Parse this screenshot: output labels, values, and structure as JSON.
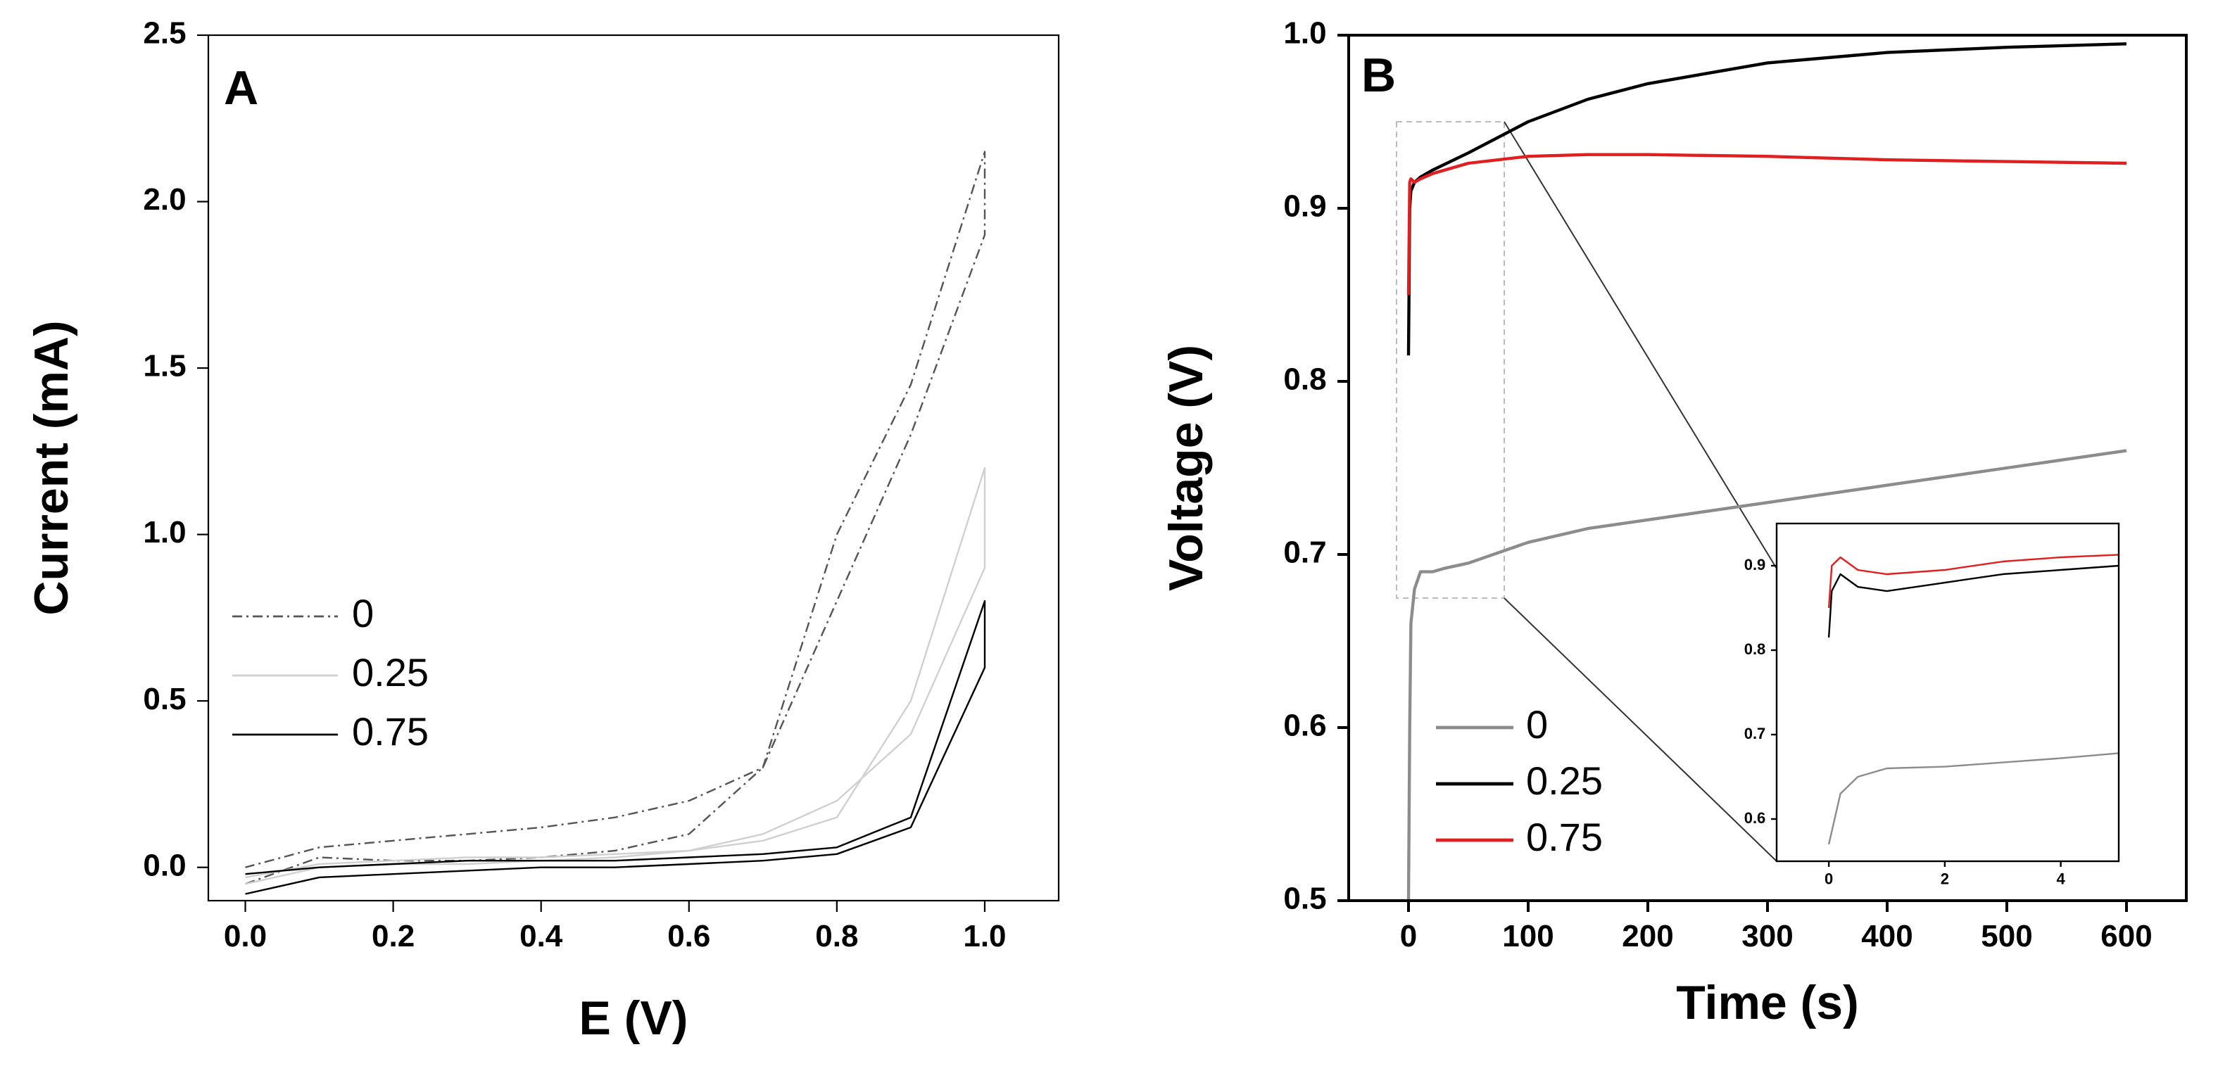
{
  "chart_data": [
    {
      "type": "line",
      "panel_label": "A",
      "xlabel": "E (V)",
      "ylabel": "Current (mA)",
      "xlim": [
        -0.05,
        1.1
      ],
      "ylim": [
        -0.1,
        2.5
      ],
      "xticks": [
        {
          "value": 0,
          "label": "0.0"
        },
        0.2,
        0.4,
        0.6,
        0.8,
        {
          "value": 1,
          "label": "1.0"
        }
      ],
      "yticks": [
        {
          "value": 0,
          "label": "0.0"
        },
        0.5,
        {
          "value": 1,
          "label": "1.0"
        },
        1.5,
        {
          "value": 2,
          "label": "2.0"
        },
        2.5
      ],
      "series": [
        {
          "name": "0",
          "color": "#555555",
          "linestyle": "dashdot",
          "x": [
            0,
            0.1,
            0.2,
            0.3,
            0.4,
            0.5,
            0.6,
            0.7,
            0.8,
            0.9,
            1.0,
            1.0,
            0.9,
            0.8,
            0.7,
            0.6,
            0.5,
            0.4,
            0.3,
            0.2,
            0.1,
            0
          ],
          "values": [
            -0.05,
            0.03,
            0.02,
            0.02,
            0.03,
            0.05,
            0.1,
            0.3,
            0.8,
            1.3,
            1.9,
            2.15,
            1.45,
            1.0,
            0.3,
            0.2,
            0.15,
            0.12,
            0.1,
            0.08,
            0.06,
            0
          ]
        },
        {
          "name": "0.25",
          "color": "#d0d0d0",
          "linestyle": "solid",
          "x": [
            0,
            0.1,
            0.2,
            0.3,
            0.4,
            0.5,
            0.6,
            0.7,
            0.8,
            0.9,
            1.0,
            1.0,
            0.9,
            0.8,
            0.7,
            0.6,
            0.5,
            0.4,
            0.3,
            0.2,
            0.1,
            0
          ],
          "values": [
            -0.05,
            0,
            0.01,
            0.01,
            0.02,
            0.03,
            0.05,
            0.1,
            0.2,
            0.4,
            0.9,
            1.2,
            0.5,
            0.15,
            0.08,
            0.05,
            0.04,
            0.03,
            0.03,
            0.02,
            0.01,
            -0.03
          ]
        },
        {
          "name": "0.75",
          "color": "#000000",
          "linestyle": "solid",
          "x": [
            0,
            0.1,
            0.2,
            0.3,
            0.4,
            0.5,
            0.6,
            0.7,
            0.8,
            0.9,
            1.0,
            1.0,
            0.9,
            0.8,
            0.7,
            0.6,
            0.5,
            0.4,
            0.3,
            0.2,
            0.1,
            0
          ],
          "values": [
            -0.08,
            -0.03,
            -0.02,
            -0.01,
            0,
            0,
            0.01,
            0.02,
            0.04,
            0.12,
            0.6,
            0.8,
            0.15,
            0.06,
            0.04,
            0.03,
            0.02,
            0.02,
            0.02,
            0.01,
            0,
            -0.02
          ]
        }
      ]
    },
    {
      "type": "line",
      "panel_label": "B",
      "xlabel": "Time (s)",
      "ylabel": "Voltage (V)",
      "xlim": [
        -50,
        650
      ],
      "ylim": [
        0.5,
        1.0
      ],
      "xticks": [
        0,
        100,
        200,
        300,
        400,
        500,
        600
      ],
      "yticks": [
        0.5,
        0.6,
        0.7,
        0.8,
        0.9,
        {
          "value": 1,
          "label": "1.0"
        }
      ],
      "series": [
        {
          "name": "0",
          "color": "#8c8c8c",
          "linestyle": "solid",
          "x": [
            0,
            1,
            2,
            5,
            10,
            20,
            30,
            50,
            100,
            150,
            200,
            300,
            400,
            500,
            600
          ],
          "values": [
            0.5,
            0.6,
            0.66,
            0.68,
            0.69,
            0.69,
            0.692,
            0.695,
            0.707,
            0.715,
            0.72,
            0.73,
            0.74,
            0.75,
            0.76
          ]
        },
        {
          "name": "0.25",
          "color": "#000000",
          "linestyle": "solid",
          "x": [
            0,
            1,
            2,
            5,
            10,
            20,
            50,
            100,
            150,
            200,
            300,
            400,
            500,
            600
          ],
          "values": [
            0.815,
            0.9,
            0.91,
            0.915,
            0.918,
            0.922,
            0.932,
            0.95,
            0.963,
            0.972,
            0.984,
            0.99,
            0.993,
            0.995
          ]
        },
        {
          "name": "0.75",
          "color": "#e02020",
          "linestyle": "solid",
          "x": [
            0,
            1,
            2,
            5,
            10,
            20,
            50,
            100,
            150,
            200,
            300,
            400,
            500,
            600
          ],
          "values": [
            0.85,
            0.915,
            0.917,
            0.915,
            0.917,
            0.92,
            0.926,
            0.93,
            0.931,
            0.931,
            0.93,
            0.928,
            0.927,
            0.926
          ]
        }
      ]
    },
    {
      "type": "line",
      "xlim": [
        -0.9,
        5
      ],
      "ylim": [
        0.55,
        0.95
      ],
      "xticks": [
        0,
        2,
        4
      ],
      "yticks": [
        0.6,
        0.7,
        0.8,
        0.9
      ],
      "series": [
        {
          "color": "#8c8c8c",
          "linestyle": "solid",
          "x": [
            0,
            0.2,
            0.5,
            1,
            2,
            3,
            4,
            5
          ],
          "values": [
            0.57,
            0.63,
            0.65,
            0.66,
            0.662,
            0.667,
            0.672,
            0.678
          ]
        },
        {
          "color": "#000000",
          "linestyle": "solid",
          "x": [
            0,
            0.05,
            0.2,
            0.5,
            1,
            2,
            3,
            4,
            5
          ],
          "values": [
            0.815,
            0.87,
            0.89,
            0.875,
            0.87,
            0.88,
            0.89,
            0.895,
            0.9
          ]
        },
        {
          "color": "#e02020",
          "linestyle": "solid",
          "x": [
            0,
            0.05,
            0.2,
            0.5,
            1,
            2,
            3,
            4,
            5
          ],
          "values": [
            0.85,
            0.9,
            0.91,
            0.895,
            0.89,
            0.895,
            0.905,
            0.91,
            0.913
          ]
        }
      ]
    }
  ]
}
